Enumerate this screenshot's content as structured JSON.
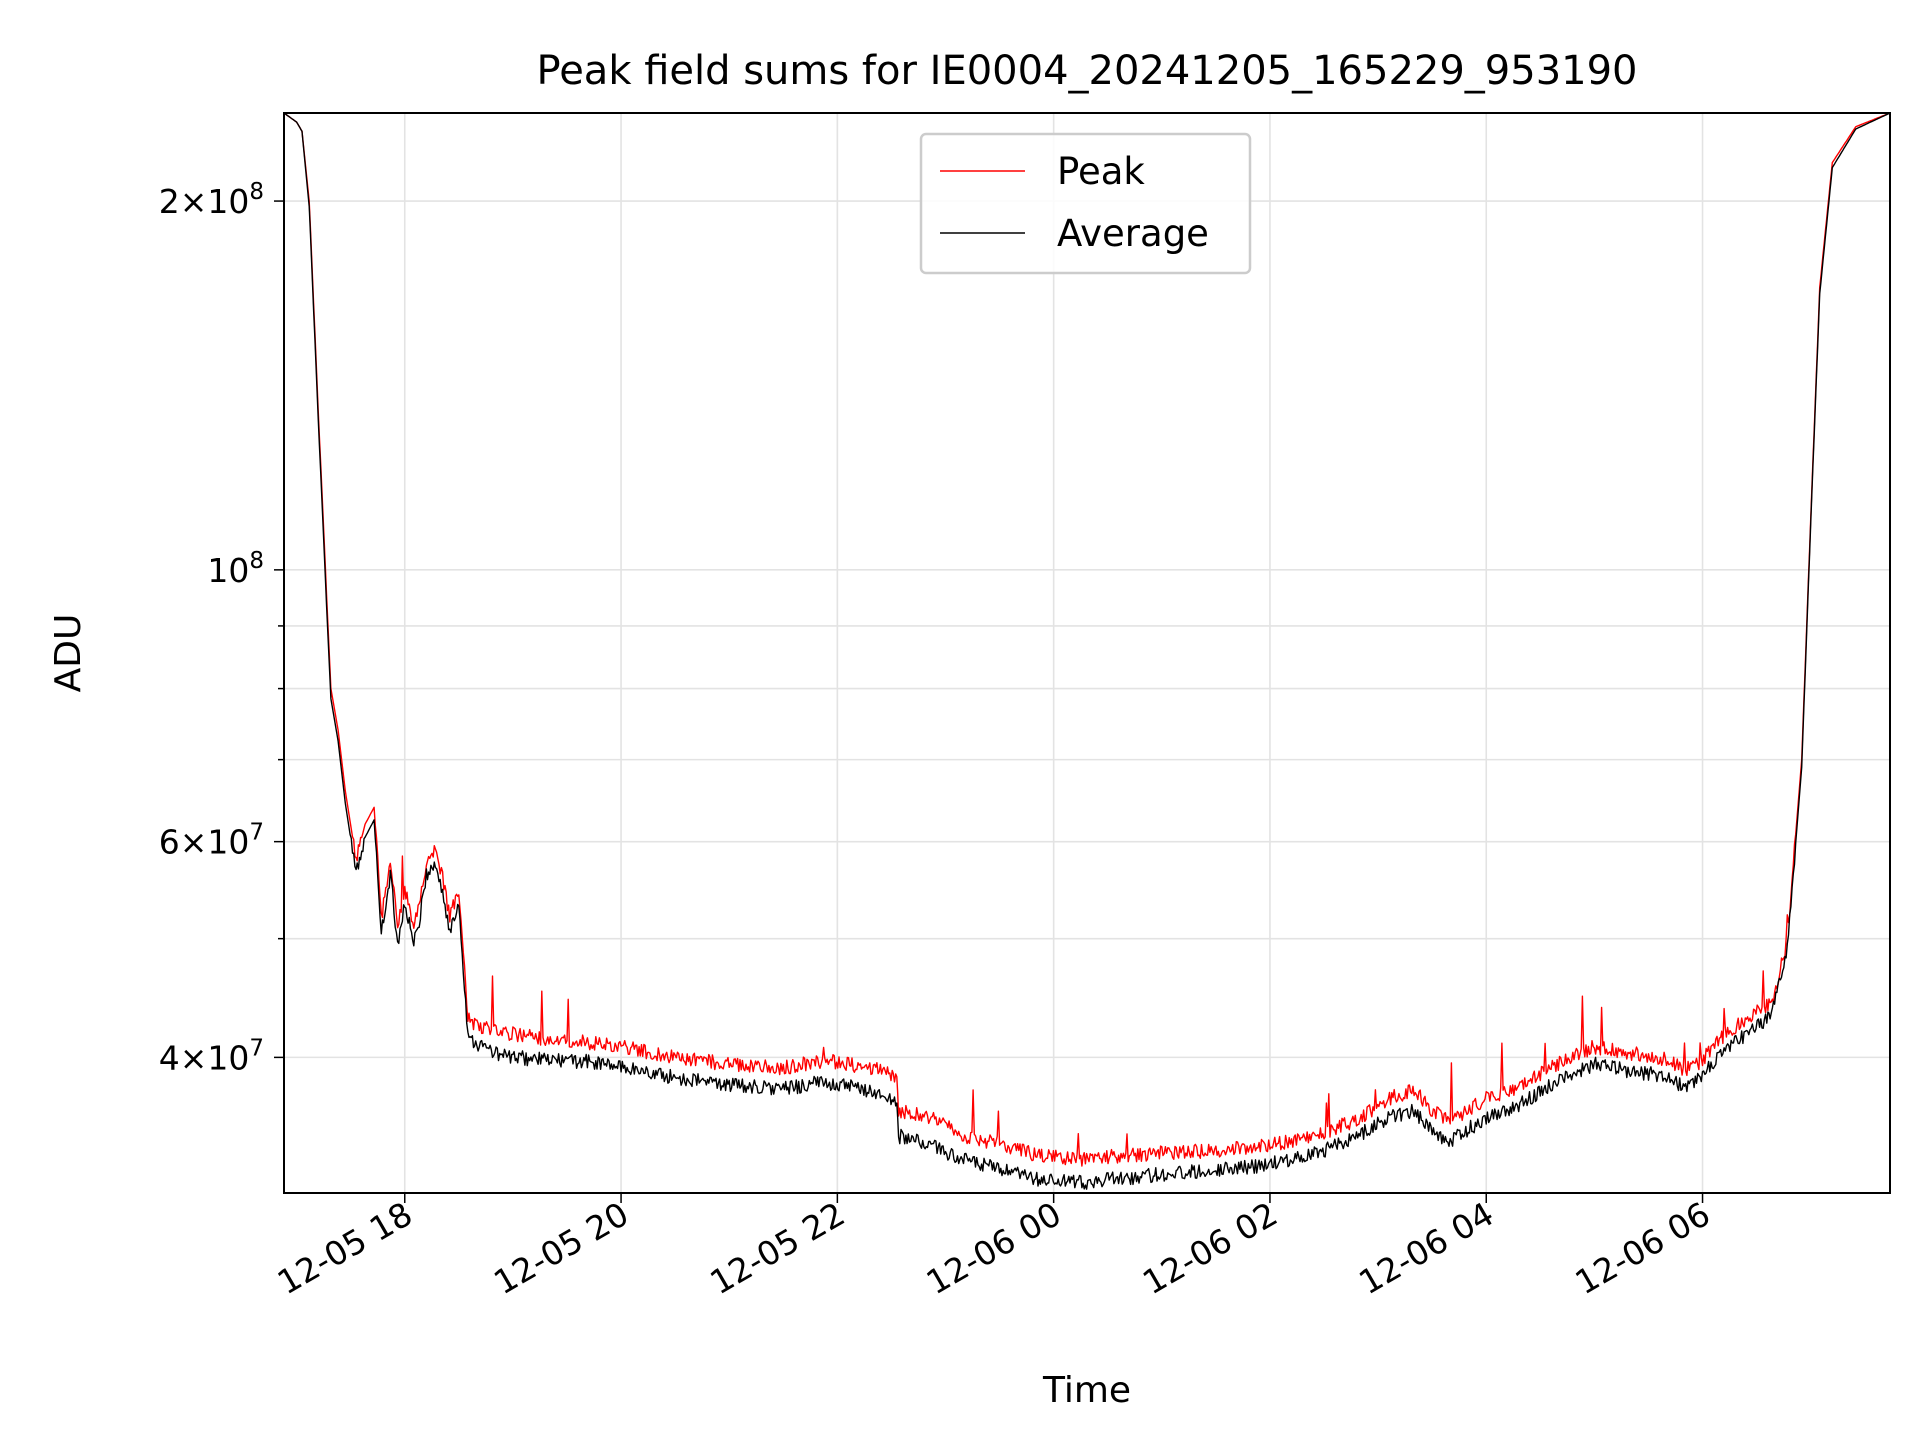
{
  "chart_data": {
    "type": "line",
    "title": "Peak field sums for IE0004_20241205_165229_953190",
    "xlabel": "Time",
    "ylabel": "ADU",
    "y_scale": "log",
    "ylim": [
      31000000,
      236000000
    ],
    "xlim": [
      "2024-12-05 16:53",
      "2024-12-06 07:44"
    ],
    "grid": true,
    "legend_position": "upper center",
    "x_ticks": [
      {
        "time": "2024-12-05 18:00",
        "label": "12-05 18"
      },
      {
        "time": "2024-12-05 20:00",
        "label": "12-05 20"
      },
      {
        "time": "2024-12-05 22:00",
        "label": "12-05 22"
      },
      {
        "time": "2024-12-06 00:00",
        "label": "12-06 00"
      },
      {
        "time": "2024-12-06 02:00",
        "label": "12-06 02"
      },
      {
        "time": "2024-12-06 04:00",
        "label": "12-06 04"
      },
      {
        "time": "2024-12-06 06:00",
        "label": "12-06 06"
      }
    ],
    "y_ticks": [
      {
        "value": 40000000,
        "base": "4",
        "exp": "7"
      },
      {
        "value": 60000000,
        "base": "6",
        "exp": "7"
      },
      {
        "value": 100000000,
        "base": "",
        "exp": "8"
      },
      {
        "value": 200000000,
        "base": "2",
        "exp": "8"
      }
    ],
    "y_minor_ticks": [
      50000000,
      70000000,
      80000000,
      90000000
    ],
    "series": [
      {
        "name": "Peak",
        "color": "#ff0000",
        "x": [
          "2024-12-05 16:53",
          "2024-12-05 17:00",
          "2024-12-05 17:03",
          "2024-12-05 17:07",
          "2024-12-05 17:12",
          "2024-12-05 17:16",
          "2024-12-05 17:19",
          "2024-12-05 17:23",
          "2024-12-05 17:27",
          "2024-12-05 17:33",
          "2024-12-05 17:38",
          "2024-12-05 17:43",
          "2024-12-05 17:47",
          "2024-12-05 17:52",
          "2024-12-05 17:56",
          "2024-12-05 18:00",
          "2024-12-05 18:05",
          "2024-12-05 18:08",
          "2024-12-05 18:12",
          "2024-12-05 18:17",
          "2024-12-05 18:21",
          "2024-12-05 18:25",
          "2024-12-05 18:30",
          "2024-12-05 18:35",
          "2024-12-05 18:40",
          "2024-12-05 18:46",
          "2024-12-05 18:50",
          "2024-12-05 19:00",
          "2024-12-05 19:20",
          "2024-12-05 19:40",
          "2024-12-05 20:00",
          "2024-12-05 20:30",
          "2024-12-05 21:00",
          "2024-12-05 21:30",
          "2024-12-05 21:53",
          "2024-12-05 22:20",
          "2024-12-05 22:33",
          "2024-12-05 22:34",
          "2024-12-05 22:50",
          "2024-12-05 23:10",
          "2024-12-05 23:30",
          "2024-12-05 23:50",
          "2024-12-06 00:15",
          "2024-12-06 00:40",
          "2024-12-06 01:00",
          "2024-12-06 01:30",
          "2024-12-06 02:00",
          "2024-12-06 02:30",
          "2024-12-06 02:50",
          "2024-12-06 03:05",
          "2024-12-06 03:20",
          "2024-12-06 03:30",
          "2024-12-06 03:40",
          "2024-12-06 04:00",
          "2024-12-06 04:20",
          "2024-12-06 04:40",
          "2024-12-06 05:00",
          "2024-12-06 05:20",
          "2024-12-06 05:40",
          "2024-12-06 05:50",
          "2024-12-06 06:00",
          "2024-12-06 06:10",
          "2024-12-06 06:25",
          "2024-12-06 06:35",
          "2024-12-06 06:40",
          "2024-12-06 06:47",
          "2024-12-06 06:55",
          "2024-12-06 07:00",
          "2024-12-06 07:05",
          "2024-12-06 07:12",
          "2024-12-06 07:25",
          "2024-12-06 07:44"
        ],
        "y": [
          236000000,
          232000000,
          228000000,
          200000000,
          135000000,
          100000000,
          80000000,
          74000000,
          66000000,
          58000000,
          62000000,
          64000000,
          52000000,
          58000000,
          51000000,
          55000000,
          51000000,
          53000000,
          58000000,
          59000000,
          56000000,
          52000000,
          55000000,
          43000000,
          42500000,
          42300000,
          42000000,
          41800000,
          41300000,
          41200000,
          40800000,
          40000000,
          39500000,
          39200000,
          39800000,
          39200000,
          38600000,
          36200000,
          35800000,
          34500000,
          34000000,
          33300000,
          33000000,
          33300000,
          33400000,
          33600000,
          33900000,
          34700000,
          35700000,
          37000000,
          37600000,
          36200000,
          35500000,
          37000000,
          38000000,
          39500000,
          40800000,
          40300000,
          39900000,
          39000000,
          39800000,
          41500000,
          43000000,
          44000000,
          45000000,
          50000000,
          70000000,
          110000000,
          170000000,
          215000000,
          230000000,
          236000000
        ]
      },
      {
        "name": "Average",
        "color": "#000000",
        "x": [
          "2024-12-05 16:53",
          "2024-12-05 17:00",
          "2024-12-05 17:03",
          "2024-12-05 17:07",
          "2024-12-05 17:12",
          "2024-12-05 17:16",
          "2024-12-05 17:19",
          "2024-12-05 17:23",
          "2024-12-05 17:27",
          "2024-12-05 17:33",
          "2024-12-05 17:38",
          "2024-12-05 17:43",
          "2024-12-05 17:47",
          "2024-12-05 17:52",
          "2024-12-05 17:56",
          "2024-12-05 18:00",
          "2024-12-05 18:05",
          "2024-12-05 18:08",
          "2024-12-05 18:12",
          "2024-12-05 18:17",
          "2024-12-05 18:21",
          "2024-12-05 18:25",
          "2024-12-05 18:30",
          "2024-12-05 18:35",
          "2024-12-05 18:40",
          "2024-12-05 18:46",
          "2024-12-05 18:50",
          "2024-12-05 19:00",
          "2024-12-05 19:20",
          "2024-12-05 19:40",
          "2024-12-05 20:00",
          "2024-12-05 20:30",
          "2024-12-05 21:00",
          "2024-12-05 21:30",
          "2024-12-05 21:53",
          "2024-12-05 22:20",
          "2024-12-05 22:33",
          "2024-12-05 22:34",
          "2024-12-05 22:50",
          "2024-12-05 23:10",
          "2024-12-05 23:30",
          "2024-12-05 23:50",
          "2024-12-06 00:15",
          "2024-12-06 00:40",
          "2024-12-06 01:00",
          "2024-12-06 01:30",
          "2024-12-06 02:00",
          "2024-12-06 02:30",
          "2024-12-06 02:50",
          "2024-12-06 03:05",
          "2024-12-06 03:20",
          "2024-12-06 03:30",
          "2024-12-06 03:40",
          "2024-12-06 04:00",
          "2024-12-06 04:20",
          "2024-12-06 04:40",
          "2024-12-06 05:00",
          "2024-12-06 05:20",
          "2024-12-06 05:40",
          "2024-12-06 05:50",
          "2024-12-06 06:00",
          "2024-12-06 06:10",
          "2024-12-06 06:25",
          "2024-12-06 06:35",
          "2024-12-06 06:40",
          "2024-12-06 06:47",
          "2024-12-06 06:55",
          "2024-12-06 07:00",
          "2024-12-06 07:05",
          "2024-12-06 07:12",
          "2024-12-06 07:25",
          "2024-12-06 07:44"
        ],
        "y": [
          236000000,
          232000000,
          228000000,
          198000000,
          133000000,
          98000000,
          78500000,
          72500000,
          64500000,
          56500000,
          60500000,
          62500000,
          50500000,
          56500000,
          49500000,
          53500000,
          49500000,
          51500000,
          56500000,
          57500000,
          54500000,
          50500000,
          53500000,
          41800000,
          41000000,
          40700000,
          40300000,
          40000000,
          39800000,
          39700000,
          39300000,
          38500000,
          38000000,
          37700000,
          38200000,
          37500000,
          36700000,
          34500000,
          34000000,
          33000000,
          32400000,
          31800000,
          31600000,
          31900000,
          32100000,
          32400000,
          32700000,
          33600000,
          34600000,
          35700000,
          36200000,
          34800000,
          34200000,
          35700000,
          36700000,
          38300000,
          39500000,
          39000000,
          38600000,
          37800000,
          38600000,
          40300000,
          41800000,
          42900000,
          44200000,
          49000000,
          69000000,
          109000000,
          168000000,
          213000000,
          229000000,
          236000000
        ]
      }
    ]
  }
}
